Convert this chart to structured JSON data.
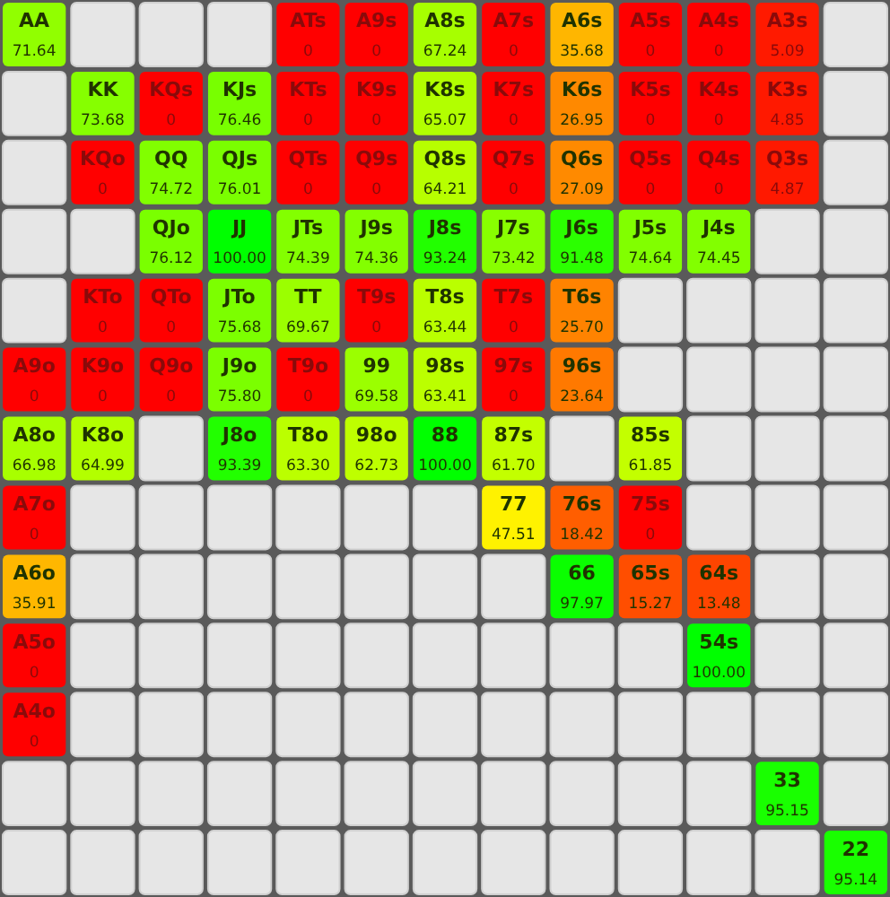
{
  "chart_data": {
    "type": "heatmap",
    "categories": [
      null,
      null,
      null,
      null,
      null,
      null,
      null,
      null,
      null,
      null,
      null,
      null,
      null
    ],
    "y_categories": [
      null,
      null,
      null,
      null,
      null,
      null,
      null,
      null,
      null,
      null,
      null,
      null,
      null
    ],
    "tick_labels": false,
    "cell_labels": [
      [
        "71.64",
        null,
        null,
        null,
        "0",
        "0",
        "67.24",
        "0",
        "35.68",
        "0",
        "0",
        "5.09",
        null
      ],
      [
        null,
        "73.68",
        "0",
        "76.46",
        "0",
        "0",
        "65.07",
        "0",
        "26.95",
        "0",
        "0",
        "4.85",
        null
      ],
      [
        null,
        "0",
        "74.72",
        "76.01",
        "0",
        "0",
        "64.21",
        "0",
        "27.09",
        "0",
        "0",
        "4.87",
        null
      ],
      [
        null,
        null,
        "76.12",
        "100.00",
        "74.39",
        "74.36",
        "93.24",
        "73.42",
        "91.48",
        "74.64",
        "74.45",
        null,
        null
      ],
      [
        null,
        "0",
        "0",
        "75.68",
        "69.67",
        "0",
        "63.44",
        "0",
        "25.70",
        null,
        null,
        null,
        null
      ],
      [
        "0",
        "0",
        "0",
        "75.80",
        "0",
        "69.58",
        "63.41",
        "0",
        "23.64",
        null,
        null,
        null,
        null
      ],
      [
        "66.98",
        "64.99",
        null,
        "93.39",
        "63.30",
        "62.73",
        "100.00",
        "61.70",
        null,
        "61.85",
        null,
        null,
        null
      ],
      [
        "0",
        null,
        null,
        null,
        null,
        null,
        null,
        "47.51",
        "18.42",
        "0",
        null,
        null,
        null
      ],
      [
        "35.91",
        null,
        null,
        null,
        null,
        null,
        null,
        null,
        "97.97",
        "15.27",
        "13.48",
        null,
        null
      ],
      [
        "0",
        null,
        null,
        null,
        null,
        null,
        null,
        null,
        null,
        null,
        "100.00",
        null,
        null
      ],
      [
        "0",
        null,
        null,
        null,
        null,
        null,
        null,
        null,
        null,
        null,
        null,
        null,
        null
      ],
      [
        null,
        null,
        null,
        null,
        null,
        null,
        null,
        null,
        null,
        null,
        null,
        "95.15",
        null
      ],
      [
        null,
        null,
        null,
        null,
        null,
        null,
        null,
        null,
        null,
        null,
        null,
        null,
        "95.14"
      ]
    ],
    "cells": [
      [
        71.64,
        null,
        null,
        null,
        0,
        0,
        67.24,
        0,
        35.68,
        0,
        0,
        5.09,
        null
      ],
      [
        null,
        73.68,
        0,
        76.46,
        0,
        0,
        65.07,
        0,
        26.95,
        0,
        0,
        4.85,
        null
      ],
      [
        null,
        0,
        74.72,
        76.01,
        0,
        0,
        64.21,
        0,
        27.09,
        0,
        0,
        4.87,
        null
      ],
      [
        null,
        null,
        76.12,
        100.0,
        74.39,
        74.36,
        93.24,
        73.42,
        91.48,
        74.64,
        74.45,
        null,
        null
      ],
      [
        null,
        0,
        0,
        75.68,
        69.67,
        0,
        63.44,
        0,
        25.7,
        null,
        null,
        null,
        null
      ],
      [
        0,
        0,
        0,
        75.8,
        0,
        69.58,
        63.41,
        0,
        23.64,
        null,
        null,
        null,
        null
      ],
      [
        66.98,
        64.99,
        null,
        93.39,
        63.3,
        62.73,
        100.0,
        61.7,
        null,
        61.85,
        null,
        null,
        null
      ],
      [
        0,
        null,
        null,
        null,
        null,
        null,
        null,
        47.51,
        18.42,
        0,
        null,
        null,
        null
      ],
      [
        35.91,
        null,
        null,
        null,
        null,
        null,
        null,
        null,
        97.97,
        15.27,
        13.48,
        null,
        null
      ],
      [
        0,
        null,
        null,
        null,
        null,
        null,
        null,
        null,
        null,
        null,
        100.0,
        null,
        null
      ],
      [
        0,
        null,
        null,
        null,
        null,
        null,
        null,
        null,
        null,
        null,
        null,
        null,
        null
      ],
      [
        null,
        null,
        null,
        null,
        null,
        null,
        null,
        null,
        null,
        null,
        null,
        95.15,
        null
      ],
      [
        null,
        null,
        null,
        null,
        null,
        null,
        null,
        null,
        null,
        null,
        null,
        null,
        95.14
      ]
    ],
    "annotations": [
      "AA",
      "ATs",
      "A9s",
      "A8s",
      "A7s",
      "A6s",
      "A5s",
      "A4s",
      "A3s",
      "KK",
      "KQs",
      "KJs",
      "KTs",
      "K9s",
      "K8s",
      "K7s",
      "K6s",
      "K5s",
      "K4s",
      "K3s",
      "KQo",
      "QQ",
      "QJs",
      "QTs",
      "Q9s",
      "Q8s",
      "Q7s",
      "Q6s",
      "Q5s",
      "Q4s",
      "Q3s",
      "QJo",
      "JJ",
      "JTs",
      "J9s",
      "J8s",
      "J7s",
      "J6s",
      "J5s",
      "J4s",
      "KTo",
      "QTo",
      "JTo",
      "TT",
      "T9s",
      "T8s",
      "T7s",
      "T6s",
      "A9o",
      "K9o",
      "Q9o",
      "J9o",
      "T9o",
      "99",
      "98s",
      "97s",
      "96s",
      "A8o",
      "K8o",
      "J8o",
      "T8o",
      "98o",
      "88",
      "87s",
      "85s",
      "A7o",
      "77",
      "76s",
      "75s",
      "A6o",
      "66",
      "65s",
      "64s",
      "A5o",
      "54s",
      "A4o",
      "33",
      "22"
    ]
  }
}
